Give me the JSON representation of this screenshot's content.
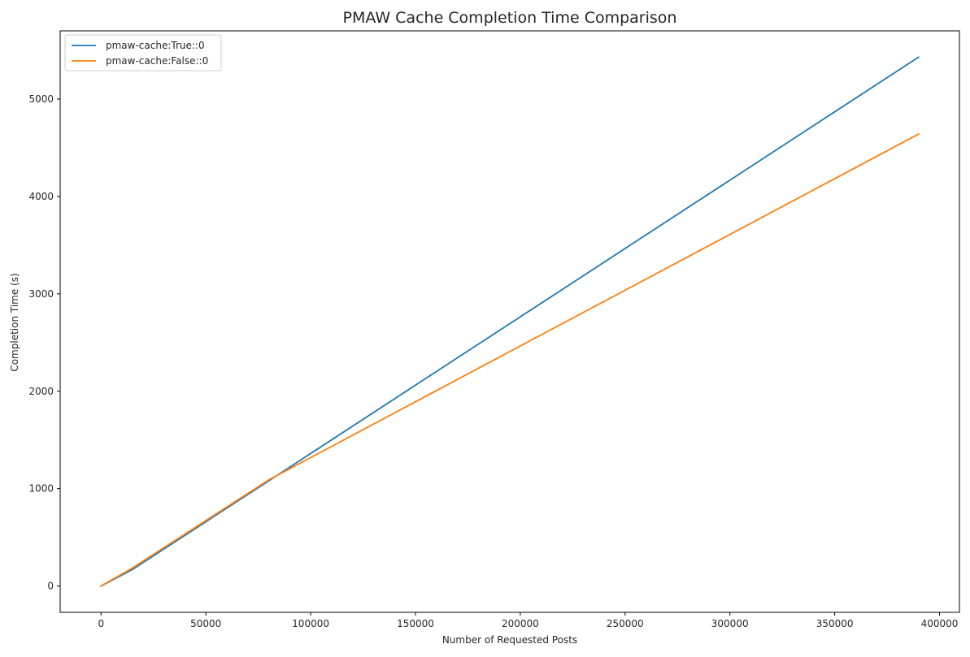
{
  "chart_data": {
    "type": "line",
    "title": "PMAW Cache Completion Time Comparison",
    "xlabel": "Number of Requested Posts",
    "ylabel": "Completion Time (s)",
    "xlim": [
      -19500,
      409500
    ],
    "ylim": [
      -270,
      5700
    ],
    "xticks": [
      0,
      50000,
      100000,
      150000,
      200000,
      250000,
      300000,
      350000,
      400000
    ],
    "yticks": [
      0,
      1000,
      2000,
      3000,
      4000,
      5000
    ],
    "grid": false,
    "legend_position": "upper-left",
    "series": [
      {
        "name": "pmaw-cache:True::0",
        "color": "#1f77b4",
        "x": [
          0,
          15000,
          80000,
          390000
        ],
        "y": [
          0,
          170,
          1080,
          5430
        ]
      },
      {
        "name": "pmaw-cache:False::0",
        "color": "#ff7f0e",
        "x": [
          0,
          15000,
          80000,
          390000
        ],
        "y": [
          0,
          185,
          1090,
          4640
        ]
      }
    ]
  }
}
